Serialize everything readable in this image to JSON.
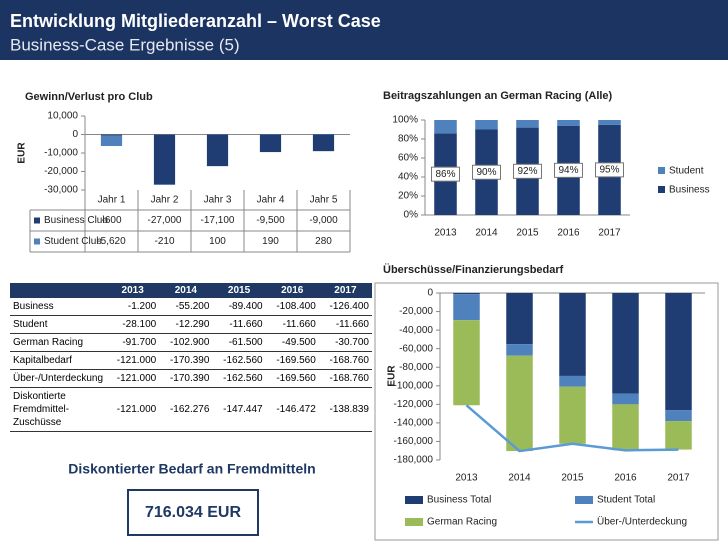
{
  "header": {
    "title": "Entwicklung Mitgliederanzahl – Worst Case",
    "subtitle": "Business-Case Ergebnisse (5)"
  },
  "chart_data": [
    {
      "type": "bar",
      "stacked": true,
      "title": "Gewinn/Verlust pro Club",
      "y_label": "EUR",
      "categories": [
        "Jahr 1",
        "Jahr 2",
        "Jahr 3",
        "Jahr 4",
        "Jahr 5"
      ],
      "series": [
        {
          "name": "Business Club",
          "color": "#1f3d73",
          "values": [
            -600,
            -27000,
            -17100,
            -9500,
            -9000
          ],
          "value_labels": [
            "-600",
            "-27,000",
            "-17,100",
            "-9,500",
            "-9,000"
          ]
        },
        {
          "name": "Student Club",
          "color": "#4f81bd",
          "values": [
            -5620,
            -210,
            100,
            190,
            280
          ],
          "value_labels": [
            "-5,620",
            "-210",
            "100",
            "190",
            "280"
          ]
        }
      ],
      "ylim": [
        -30000,
        10000
      ],
      "yticks": [
        {
          "value": 10000,
          "label": "10,000"
        },
        0,
        {
          "value": -10000,
          "label": "-10,000"
        },
        {
          "value": -20000,
          "label": "-20,000"
        },
        {
          "value": -30000,
          "label": "-30,000"
        }
      ]
    },
    {
      "type": "bar",
      "stacked": true,
      "title": "Beitragszahlungen an German Racing (Alle)",
      "categories": [
        "2013",
        "2014",
        "2015",
        "2016",
        "2017"
      ],
      "series": [
        {
          "name": "Business",
          "color": "#1f3d73",
          "values": [
            86,
            90,
            92,
            94,
            95
          ],
          "value_labels": [
            "86%",
            "90%",
            "92%",
            "94%",
            "95%"
          ]
        },
        {
          "name": "Student",
          "color": "#4f81bd",
          "values": [
            14,
            10,
            8,
            6,
            5
          ]
        }
      ],
      "ylim": [
        0,
        100
      ],
      "yticks": [
        {
          "value": 0,
          "label": "0%"
        },
        {
          "value": 20,
          "label": "20%"
        },
        {
          "value": 40,
          "label": "40%"
        },
        {
          "value": 60,
          "label": "60%"
        },
        {
          "value": 80,
          "label": "80%"
        },
        {
          "value": 100,
          "label": "100%"
        }
      ],
      "legend": "right"
    },
    {
      "type": "bar",
      "stacked": true,
      "title": "Überschüsse/Finanzierungsbedarf",
      "y_label": "EUR",
      "categories": [
        "2013",
        "2014",
        "2015",
        "2016",
        "2017"
      ],
      "series": [
        {
          "name": "Business Total",
          "color": "#1f3d73",
          "values": [
            -1200,
            -55200,
            -89400,
            -108400,
            -126400
          ]
        },
        {
          "name": "Student Total",
          "color": "#4f81bd",
          "values": [
            -28100,
            -12290,
            -11660,
            -11660,
            -11660
          ]
        },
        {
          "name": "German Racing",
          "color": "#9bbb59",
          "values": [
            -91700,
            -102900,
            -61500,
            -49500,
            -30700
          ]
        },
        {
          "name": "Über-/Unterdeckung",
          "type": "line",
          "color": "#5b9bd5",
          "values": [
            -121000,
            -170390,
            -162560,
            -169560,
            -168760
          ]
        }
      ],
      "ylim": [
        -180000,
        0
      ],
      "yticks": [
        0,
        {
          "value": -20000,
          "label": "-20,000"
        },
        {
          "value": -40000,
          "label": "-40,000"
        },
        {
          "value": -60000,
          "label": "-60,000"
        },
        {
          "value": -80000,
          "label": "-80,000"
        },
        {
          "value": -100000,
          "label": "-100,000"
        },
        {
          "value": -120000,
          "label": "-120,000"
        },
        {
          "value": -140000,
          "label": "-140,000"
        },
        {
          "value": -160000,
          "label": "-160,000"
        },
        {
          "value": -180000,
          "label": "-180,000"
        }
      ],
      "legend": "bottom"
    }
  ],
  "table": {
    "columns": [
      "2013",
      "2014",
      "2015",
      "2016",
      "2017"
    ],
    "rows": [
      {
        "label": "Business",
        "values": [
          "-1.200",
          "-55.200",
          "-89.400",
          "-108.400",
          "-126.400"
        ]
      },
      {
        "label": "Student",
        "values": [
          "-28.100",
          "-12.290",
          "-11.660",
          "-11.660",
          "-11.660"
        ]
      },
      {
        "label": "German Racing",
        "values": [
          "-91.700",
          "-102.900",
          "-61.500",
          "-49.500",
          "-30.700"
        ]
      },
      {
        "label": "Kapitalbedarf",
        "values": [
          "-121.000",
          "-170.390",
          "-162.560",
          "-169.560",
          "-168.760"
        ]
      },
      {
        "label": "Über-/Unterdeckung",
        "values": [
          "-121.000",
          "-170.390",
          "-162.560",
          "-169.560",
          "-168.760"
        ]
      },
      {
        "label": "Diskontierte Fremdmittel-Zuschüsse",
        "values": [
          "-121.000",
          "-162.276",
          "-147.447",
          "-146.472",
          "-138.839"
        ]
      }
    ]
  },
  "summary": {
    "label": "Diskontierter Bedarf an Fremdmitteln",
    "value": "716.034 EUR"
  }
}
